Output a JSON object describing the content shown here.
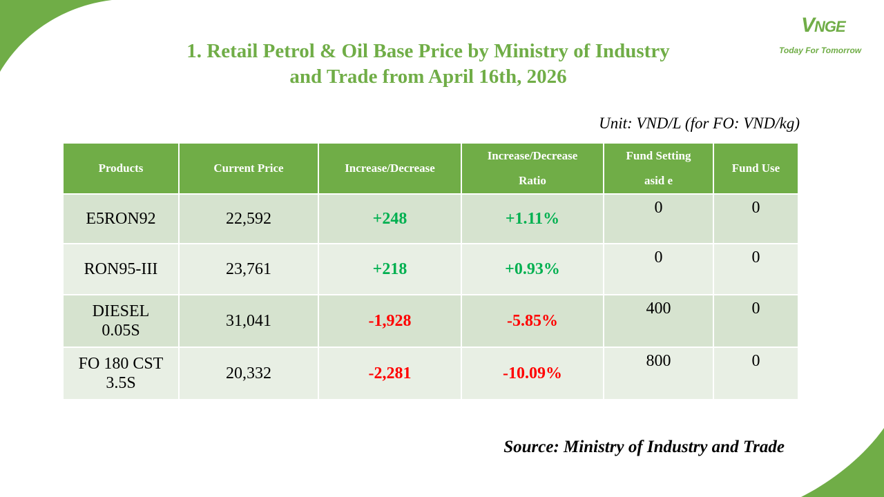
{
  "title": {
    "line1": "1. Retail Petrol & Oil Base Price by Ministry of Industry",
    "line2": "and Trade from April 16th, 2026"
  },
  "logo": {
    "mark_first": "V",
    "mark_rest": "NGE",
    "tagline": "Today For Tomorrow"
  },
  "unit": "Unit: VND/L (for FO: VND/kg)",
  "table": {
    "headers": {
      "products": "Products",
      "current_price": "Current Price",
      "change": "Increase/Decrease",
      "ratio_line1": "Increase/Decrease",
      "ratio_line2": "Ratio",
      "fund_setting_line1": "Fund Setting",
      "fund_setting_line2": "asid e",
      "fund_use": "Fund Use"
    },
    "rows": [
      {
        "product_line1": "E5RON92",
        "product_line2": "",
        "current_price": "22,592",
        "change": "+248",
        "ratio": "+1.11%",
        "fund_setting": "0",
        "fund_use": "0"
      },
      {
        "product_line1": "RON95-III",
        "product_line2": "",
        "current_price": "23,761",
        "change": "+218",
        "ratio": "+0.93%",
        "fund_setting": "0",
        "fund_use": "0"
      },
      {
        "product_line1": "DIESEL",
        "product_line2": "0.05S",
        "current_price": "31,041",
        "change": "-1,928",
        "ratio": "-5.85%",
        "fund_setting": "400",
        "fund_use": "0"
      },
      {
        "product_line1": "FO 180 CST",
        "product_line2": "3.5S",
        "current_price": "20,332",
        "change": "-2,281",
        "ratio": "-10.09%",
        "fund_setting": "800",
        "fund_use": "0"
      }
    ]
  },
  "source": "Source: Ministry of Industry and Trade",
  "colors": {
    "accent_green": "#70ad47",
    "row_dark": "#d6e3cf",
    "row_light": "#e8efe4",
    "increase": "#00b050",
    "decrease": "#ff0000"
  }
}
